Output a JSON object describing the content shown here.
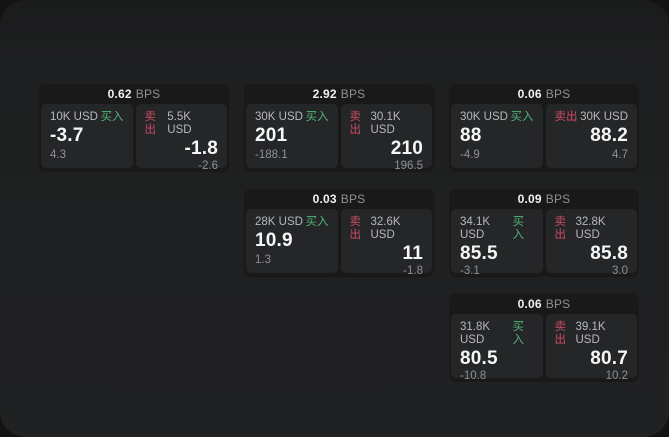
{
  "labels": {
    "bps_unit": "BPS",
    "buy": "买入",
    "sell": "卖出"
  },
  "colors": {
    "buy": "#53b377",
    "sell": "#cd4a63",
    "value": "#f5f6f7",
    "muted": "#8f9092",
    "window_bg": "#1f2021",
    "card_bg": "#19191a",
    "panel_bg": "#242628"
  },
  "cards": [
    {
      "bps": "0.62",
      "buy": {
        "size": "10K USD",
        "price": "-3.7",
        "sub": "4.3"
      },
      "sell": {
        "size": "5.5K USD",
        "price": "-1.8",
        "sub": "-2.6"
      }
    },
    {
      "bps": "2.92",
      "buy": {
        "size": "30K USD",
        "price": "201",
        "sub": "-188.1"
      },
      "sell": {
        "size": "30.1K USD",
        "price": "210",
        "sub": "196.5"
      }
    },
    {
      "bps": "0.06",
      "buy": {
        "size": "30K USD",
        "price": "88",
        "sub": "-4.9"
      },
      "sell": {
        "size": "30K USD",
        "price": "88.2",
        "sub": "4.7"
      }
    },
    {
      "bps": "0.03",
      "buy": {
        "size": "28K USD",
        "price": "10.9",
        "sub": "1.3"
      },
      "sell": {
        "size": "32.6K USD",
        "price": "11",
        "sub": "-1.8"
      }
    },
    {
      "bps": "0.09",
      "buy": {
        "size": "34.1K USD",
        "price": "85.5",
        "sub": "-3.1"
      },
      "sell": {
        "size": "32.8K USD",
        "price": "85.8",
        "sub": "3.0"
      }
    },
    {
      "bps": "0.06",
      "buy": {
        "size": "31.8K USD",
        "price": "80.5",
        "sub": "-10.8"
      },
      "sell": {
        "size": "39.1K USD",
        "price": "80.7",
        "sub": "10.2"
      }
    }
  ]
}
